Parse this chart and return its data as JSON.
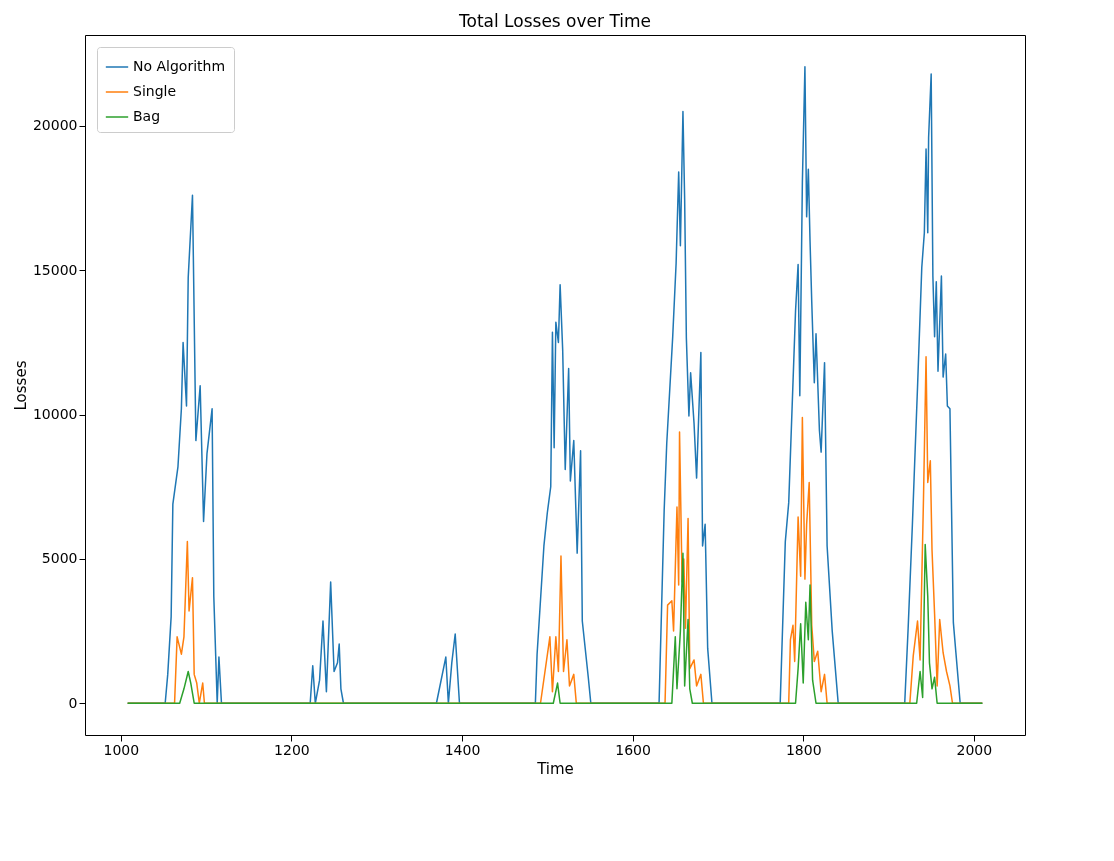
{
  "chart_data": {
    "type": "line",
    "title": "Total Losses over Time",
    "xlabel": "Time",
    "ylabel": "Losses",
    "xlim": [
      958,
      2060
    ],
    "ylim": [
      -1100,
      23150
    ],
    "xticks": [
      1000,
      1200,
      1400,
      1600,
      1800,
      2000
    ],
    "yticks": [
      0,
      5000,
      10000,
      15000,
      20000
    ],
    "legend": "top left",
    "line_style": "solid",
    "series": [
      {
        "name": "No Algorithm",
        "color": "#1f77b4",
        "x": [
          1008,
          1052,
          1055,
          1059,
          1061,
          1067,
          1071,
          1073,
          1077,
          1079,
          1084,
          1085,
          1088,
          1093,
          1097,
          1101,
          1107,
          1109,
          1113,
          1115,
          1118,
          1222,
          1225,
          1228,
          1233,
          1237,
          1241,
          1246,
          1250,
          1254,
          1256,
          1258,
          1261,
          1370,
          1381,
          1384,
          1388,
          1392,
          1397,
          1486,
          1488,
          1496,
          1500,
          1504,
          1506,
          1508,
          1510,
          1513,
          1515,
          1518,
          1521,
          1525,
          1527,
          1531,
          1535,
          1539,
          1541,
          1548,
          1551,
          1631,
          1637,
          1640,
          1647,
          1651,
          1654,
          1656,
          1659,
          1661,
          1663,
          1666,
          1668,
          1672,
          1675,
          1680,
          1682,
          1685,
          1688,
          1693,
          1773,
          1779,
          1783,
          1791,
          1794,
          1796,
          1799,
          1802,
          1804,
          1806,
          1808,
          1810,
          1813,
          1815,
          1819,
          1821,
          1825,
          1828,
          1834,
          1841,
          1919,
          1923,
          1928,
          1930,
          1934,
          1939,
          1942,
          1944,
          1946,
          1947,
          1950,
          1952,
          1954,
          1956,
          1958,
          1962,
          1964,
          1967,
          1969,
          1972,
          1976,
          1979,
          1984,
          2010
        ],
        "values": [
          0,
          0,
          1000,
          3000,
          6900,
          8200,
          10200,
          12500,
          10300,
          14750,
          17600,
          15500,
          9100,
          11000,
          6300,
          8650,
          10200,
          3700,
          0,
          1600,
          0,
          0,
          1300,
          0,
          800,
          2850,
          400,
          4200,
          1100,
          1400,
          2050,
          500,
          0,
          0,
          1600,
          0,
          1400,
          2400,
          0,
          0,
          1700,
          5450,
          6600,
          7500,
          12850,
          8850,
          13200,
          12500,
          14500,
          12250,
          8100,
          11600,
          7700,
          9100,
          5200,
          8750,
          2850,
          900,
          0,
          0,
          6700,
          9000,
          12700,
          15250,
          18400,
          15850,
          20500,
          17450,
          12650,
          9950,
          11450,
          9700,
          7800,
          12150,
          5450,
          6200,
          1900,
          0,
          0,
          5600,
          6950,
          13600,
          15200,
          10650,
          18050,
          22050,
          16850,
          18500,
          16000,
          13900,
          11100,
          12800,
          9450,
          8700,
          11800,
          5450,
          2500,
          0,
          0,
          2600,
          6200,
          7800,
          10950,
          15100,
          16300,
          19200,
          16300,
          19600,
          21800,
          14800,
          12700,
          14600,
          11500,
          14800,
          11300,
          12100,
          10300,
          10200,
          2800,
          1750,
          0,
          0
        ]
      },
      {
        "name": "Single",
        "color": "#ff7f0e",
        "x": [
          1008,
          1063,
          1066,
          1071,
          1074,
          1078,
          1080,
          1084,
          1086,
          1089,
          1092,
          1096,
          1098,
          1492,
          1503,
          1506,
          1510,
          1513,
          1516,
          1519,
          1523,
          1526,
          1531,
          1534,
          1638,
          1641,
          1646,
          1648,
          1652,
          1654,
          1655,
          1658,
          1660,
          1662,
          1665,
          1667,
          1672,
          1675,
          1680,
          1683,
          1783,
          1785,
          1788,
          1790,
          1794,
          1797,
          1799,
          1802,
          1804,
          1807,
          1810,
          1813,
          1817,
          1821,
          1825,
          1828,
          1925,
          1929,
          1934,
          1937,
          1941,
          1944,
          1946,
          1949,
          1951,
          1954,
          1957,
          1960,
          1964,
          1968,
          1972,
          1975,
          2010
        ],
        "values": [
          0,
          0,
          2300,
          1700,
          2300,
          5600,
          3200,
          4350,
          1000,
          700,
          0,
          700,
          0,
          0,
          2300,
          400,
          2300,
          1100,
          5100,
          1100,
          2200,
          600,
          1000,
          0,
          0,
          3400,
          3550,
          2500,
          6800,
          4100,
          9400,
          4200,
          5000,
          2600,
          6400,
          1200,
          1500,
          600,
          1000,
          0,
          0,
          2200,
          2700,
          1450,
          6450,
          4400,
          9900,
          4300,
          6200,
          7650,
          2700,
          1450,
          1800,
          400,
          1000,
          0,
          0,
          1650,
          2850,
          1500,
          7100,
          12000,
          7650,
          8400,
          5300,
          3100,
          600,
          2900,
          1750,
          1100,
          600,
          0,
          0
        ]
      },
      {
        "name": "Bag",
        "color": "#2ca02c",
        "x": [
          1008,
          1069,
          1074,
          1079,
          1082,
          1086,
          1507,
          1512,
          1515,
          1646,
          1650,
          1652,
          1656,
          1659,
          1661,
          1665,
          1667,
          1670,
          1791,
          1794,
          1797,
          1800,
          1803,
          1806,
          1808,
          1811,
          1815,
          1933,
          1937,
          1940,
          1943,
          1946,
          1948,
          1951,
          1954,
          1957,
          2010
        ],
        "values": [
          0,
          0,
          500,
          1100,
          700,
          0,
          0,
          700,
          0,
          0,
          2300,
          500,
          2500,
          5200,
          600,
          2900,
          500,
          0,
          0,
          1200,
          2750,
          700,
          3500,
          2200,
          4100,
          800,
          0,
          0,
          1100,
          200,
          5500,
          3700,
          1400,
          500,
          900,
          0,
          0
        ]
      }
    ]
  }
}
